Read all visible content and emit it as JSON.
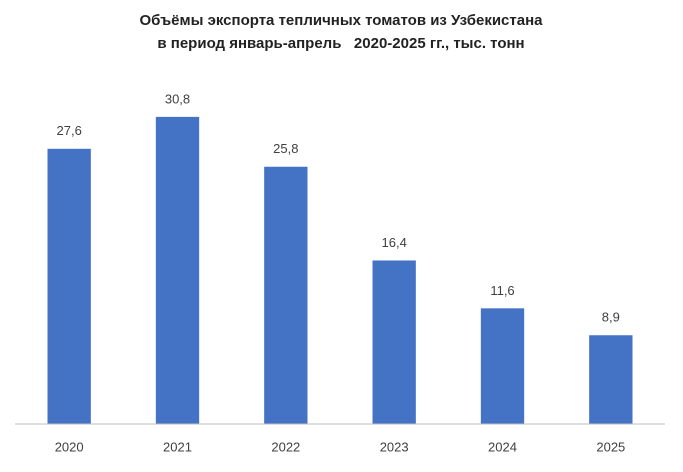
{
  "chart_data": {
    "type": "bar",
    "title": "Объёмы экспорта тепличных томатов из Узбекистана",
    "subtitle": "в период январь-апрель   2020-2025 гг., тыс. тонн",
    "categories": [
      "2020",
      "2021",
      "2022",
      "2023",
      "2024",
      "2025"
    ],
    "values": [
      27.6,
      30.8,
      25.8,
      16.4,
      11.6,
      8.9
    ],
    "value_labels": [
      "27,6",
      "30,8",
      "25,8",
      "16,4",
      "11,6",
      "8,9"
    ],
    "color": "#4472c4",
    "ylim": [
      0,
      35
    ]
  }
}
